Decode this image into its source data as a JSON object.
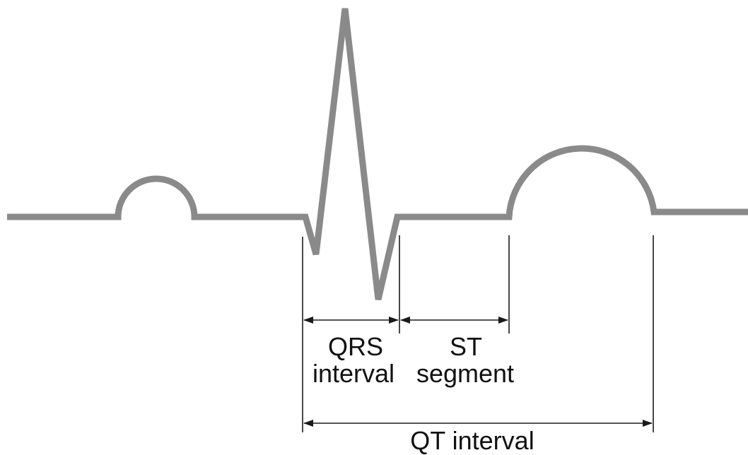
{
  "labels": {
    "qrs_line1": "QRS",
    "qrs_line2": "interval",
    "st_line1": "ST",
    "st_line2": "segment",
    "qt": "QT interval"
  }
}
